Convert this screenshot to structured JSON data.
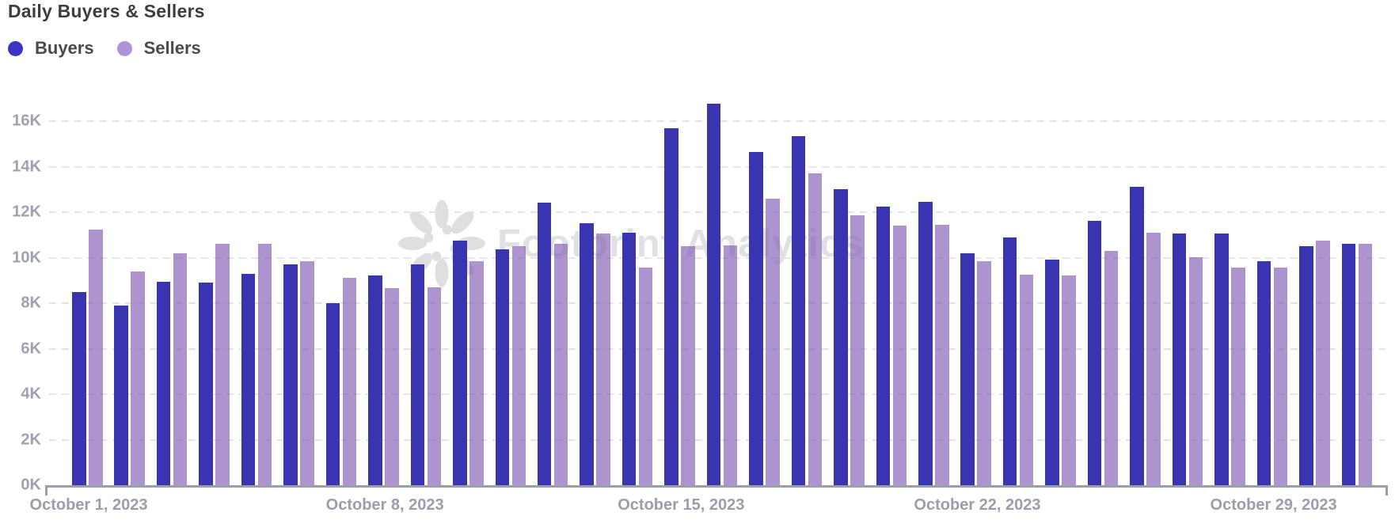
{
  "title": "Daily Buyers & Sellers",
  "legend": [
    {
      "label": "Buyers",
      "color": "#3a33c4"
    },
    {
      "label": "Sellers",
      "color": "#ae93d6"
    }
  ],
  "watermark": {
    "text": "Footprint Analytics",
    "icon": "footprint-flower-icon",
    "color": "#e1e1e5"
  },
  "colors": {
    "buyers_bar": "#3a34b0",
    "sellers_bar": "rgba(130,90,180,0.65)",
    "axis": "#9b9dab",
    "grid": "#e4e4ea",
    "tick_text": "#9ea1b0",
    "title_text": "#3d3d3d"
  },
  "chart_data": {
    "type": "bar",
    "title": "Daily Buyers & Sellers",
    "unit": "K",
    "x_month": "October 2023",
    "days": [
      1,
      2,
      3,
      4,
      5,
      6,
      7,
      8,
      9,
      10,
      11,
      12,
      13,
      14,
      15,
      16,
      17,
      18,
      19,
      20,
      21,
      22,
      23,
      24,
      25,
      26,
      27,
      28,
      29,
      30,
      31
    ],
    "series": [
      {
        "name": "Buyers",
        "values": [
          8.5,
          7.9,
          8.95,
          8.9,
          9.3,
          9.7,
          8.0,
          9.2,
          9.7,
          10.75,
          10.35,
          12.4,
          11.5,
          11.1,
          15.7,
          16.75,
          14.65,
          15.35,
          13.0,
          12.25,
          12.45,
          10.2,
          10.9,
          9.9,
          11.6,
          13.1,
          11.05,
          11.05,
          9.85,
          10.5,
          10.6
        ]
      },
      {
        "name": "Sellers",
        "values": [
          11.25,
          9.4,
          10.2,
          10.6,
          10.6,
          9.85,
          9.1,
          8.65,
          8.7,
          9.85,
          10.5,
          10.6,
          11.05,
          9.55,
          10.5,
          10.55,
          12.6,
          13.7,
          11.85,
          11.4,
          11.45,
          9.85,
          9.25,
          9.2,
          10.3,
          11.1,
          10.0,
          9.55,
          9.55,
          10.75,
          10.6
        ]
      }
    ],
    "yticks": [
      "0K",
      "2K",
      "4K",
      "6K",
      "8K",
      "10K",
      "12K",
      "14K",
      "16K"
    ],
    "ylim": [
      0,
      16
    ],
    "ytick_step": 2,
    "xticks": [
      {
        "day": 1,
        "label": "October 1, 2023"
      },
      {
        "day": 8,
        "label": "October 8, 2023"
      },
      {
        "day": 15,
        "label": "October 15, 2023"
      },
      {
        "day": 22,
        "label": "October 22, 2023"
      },
      {
        "day": 29,
        "label": "October 29, 2023"
      }
    ],
    "grid": true,
    "legend_position": "top-left"
  }
}
